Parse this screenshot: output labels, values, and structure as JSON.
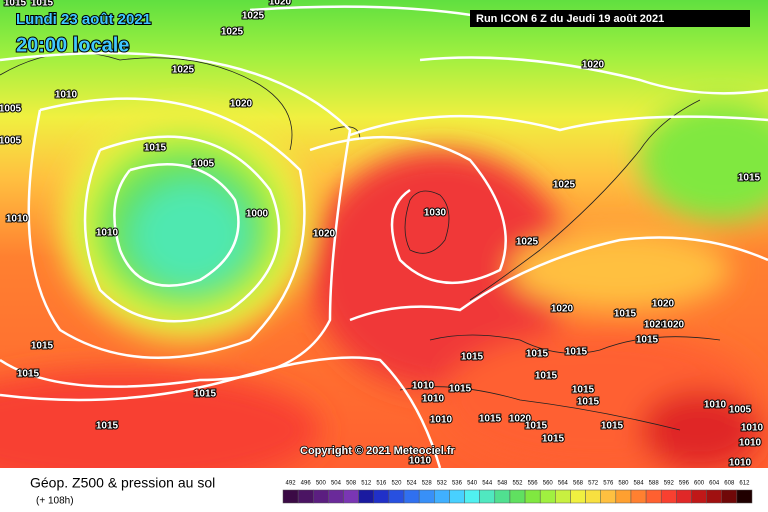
{
  "header": {
    "date": "Lundi 23 août 2021",
    "time": "20:00 locale"
  },
  "run": "Run ICON 6 Z du Jeudi 19 août 2021",
  "copyright": "Copyright © 2021 Meteociel.fr",
  "footer": {
    "title": "Géop. Z500 & pression au sol",
    "lead": "(+ 108h)"
  },
  "isobar_labels": [
    "1015",
    "1015",
    "1025",
    "1025",
    "1020",
    "1025",
    "1010",
    "1005",
    "1005",
    "1020",
    "1015",
    "1005",
    "1000",
    "1010",
    "1010",
    "1020",
    "1030",
    "1020",
    "1025",
    "1025",
    "1015",
    "1020",
    "1020",
    "1015",
    "1020",
    "1020",
    "1015",
    "1015",
    "1015",
    "1015",
    "1015",
    "1015",
    "1015",
    "1015",
    "1010",
    "1010",
    "1015",
    "1015",
    "1020",
    "1015",
    "1015",
    "1015",
    "1015",
    "1015",
    "1010",
    "1015",
    "1005",
    "1010",
    "1010",
    "1010",
    "1010",
    "1010"
  ],
  "legend": {
    "ticks": [
      492,
      496,
      500,
      504,
      508,
      512,
      516,
      520,
      524,
      528,
      532,
      536,
      540,
      544,
      548,
      552,
      556,
      560,
      564,
      568,
      572,
      576,
      580,
      584,
      588,
      592,
      596,
      600,
      604,
      608,
      612
    ],
    "colors": [
      "#3b0a45",
      "#4b1463",
      "#5b1e80",
      "#6a2a9a",
      "#7a36b4",
      "#1a1aa0",
      "#2030c8",
      "#2850e0",
      "#3070f0",
      "#3890f8",
      "#40b0ff",
      "#48d0ff",
      "#50f0f0",
      "#50e8c0",
      "#50e090",
      "#60e060",
      "#80e840",
      "#a0f040",
      "#c8f040",
      "#f0f040",
      "#f8e040",
      "#ffc040",
      "#ffa030",
      "#ff8030",
      "#ff6030",
      "#f84030",
      "#e02828",
      "#c01818",
      "#a01010",
      "#700808",
      "#200000"
    ]
  }
}
